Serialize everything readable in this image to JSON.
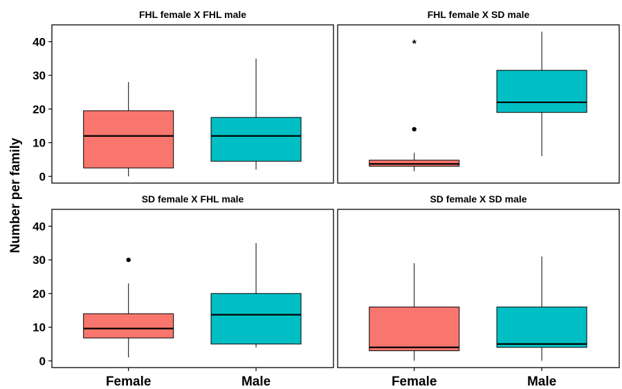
{
  "chart_data": {
    "type": "boxplot",
    "ylabel": "Number per family",
    "ylim": [
      -2,
      45
    ],
    "yticks": [
      0,
      10,
      20,
      30,
      40
    ],
    "categories": [
      "Female",
      "Male"
    ],
    "colors": {
      "Female": "#F8766D",
      "Male": "#00BFC4"
    },
    "panels": [
      {
        "title": "FHL female X FHL male",
        "boxes": [
          {
            "category": "Female",
            "min": 0,
            "q1": 2.5,
            "median": 12,
            "q3": 19.5,
            "max": 28,
            "outliers": []
          },
          {
            "category": "Male",
            "min": 2,
            "q1": 4.5,
            "median": 12,
            "q3": 17.5,
            "max": 35,
            "outliers": []
          }
        ]
      },
      {
        "title": "FHL female X SD male",
        "boxes": [
          {
            "category": "Female",
            "min": 1.5,
            "q1": 3,
            "median": 3.7,
            "q3": 4.8,
            "max": 7,
            "outliers": [
              {
                "value": 14,
                "marker": "dot"
              },
              {
                "value": 40,
                "marker": "star",
                "label": "*"
              }
            ]
          },
          {
            "category": "Male",
            "min": 6,
            "q1": 19,
            "median": 22,
            "q3": 31.5,
            "max": 43,
            "outliers": []
          }
        ]
      },
      {
        "title": "SD female X FHL male",
        "boxes": [
          {
            "category": "Female",
            "min": 1,
            "q1": 6.8,
            "median": 9.6,
            "q3": 14,
            "max": 23,
            "outliers": [
              {
                "value": 30,
                "marker": "dot"
              }
            ]
          },
          {
            "category": "Male",
            "min": 4,
            "q1": 5,
            "median": 13.7,
            "q3": 20,
            "max": 35,
            "outliers": []
          }
        ]
      },
      {
        "title": "SD female X SD male",
        "boxes": [
          {
            "category": "Female",
            "min": 0,
            "q1": 3,
            "median": 4,
            "q3": 16,
            "max": 29,
            "outliers": []
          },
          {
            "category": "Male",
            "min": 0,
            "q1": 4,
            "median": 5,
            "q3": 16,
            "max": 31,
            "outliers": []
          }
        ]
      }
    ]
  }
}
